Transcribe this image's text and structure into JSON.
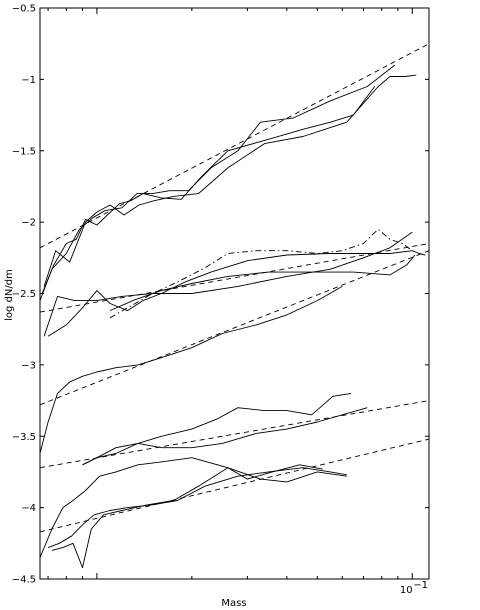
{
  "chart_data": {
    "type": "line",
    "title": "",
    "xlabel": "Mass",
    "ylabel": "log dN/dm",
    "xscale": "log",
    "xlim": [
      0.0066,
      0.113
    ],
    "ylim": [
      -4.5,
      -0.5
    ],
    "grid": false,
    "legend": "none",
    "x_tick_labels": [
      {
        "value": 0.1,
        "label": "10",
        "exponent": "−1"
      }
    ],
    "y_ticks": [
      -4.5,
      -4,
      -3.5,
      -3,
      -2.5,
      -2,
      -1.5,
      -1,
      -0.5
    ],
    "y_tick_labels": [
      "−4.5",
      "−4",
      "−3.5",
      "−3",
      "−2.5",
      "−2",
      "−1.5",
      "−1",
      "−0.5"
    ],
    "series": [
      {
        "style": "solid",
        "x": [
          0.0066,
          0.0072,
          0.008,
          0.0088,
          0.0097,
          0.0106,
          0.012,
          0.0134,
          0.015,
          0.017,
          0.0195,
          0.023,
          0.028,
          0.033,
          0.042,
          0.055,
          0.072,
          0.088
        ],
        "y": [
          -2.55,
          -2.33,
          -2.22,
          -2.05,
          -1.97,
          -1.92,
          -1.9,
          -1.8,
          -1.8,
          -1.78,
          -1.78,
          -1.62,
          -1.5,
          -1.3,
          -1.27,
          -1.15,
          -1.05,
          -0.9
        ]
      },
      {
        "style": "solid",
        "x": [
          0.0068,
          0.0074,
          0.0082,
          0.0092,
          0.01,
          0.011,
          0.0122,
          0.0136,
          0.0152,
          0.0175,
          0.021,
          0.026,
          0.034,
          0.045,
          0.062,
          0.078,
          0.085,
          0.095,
          0.103
        ],
        "y": [
          -2.45,
          -2.2,
          -2.28,
          -2.0,
          -1.93,
          -1.88,
          -1.95,
          -1.88,
          -1.85,
          -1.82,
          -1.8,
          -1.62,
          -1.45,
          -1.4,
          -1.3,
          -1.05,
          -0.98,
          -0.98,
          -0.97
        ]
      },
      {
        "style": "solid",
        "x": [
          0.0067,
          0.0073,
          0.008,
          0.0086,
          0.0092,
          0.01,
          0.0108,
          0.0118,
          0.0128,
          0.014,
          0.016,
          0.0185,
          0.0215,
          0.026,
          0.035,
          0.045,
          0.055,
          0.065,
          0.076
        ],
        "y": [
          -2.5,
          -2.3,
          -2.15,
          -2.12,
          -1.98,
          -2.02,
          -1.95,
          -1.87,
          -1.85,
          -1.8,
          -1.83,
          -1.84,
          -1.68,
          -1.5,
          -1.42,
          -1.35,
          -1.3,
          -1.25,
          -1.05
        ]
      },
      {
        "style": "dashed",
        "x": [
          0.0066,
          0.113
        ],
        "y": [
          -2.18,
          -0.75
        ]
      },
      {
        "style": "solid",
        "x": [
          0.0068,
          0.0075,
          0.0085,
          0.01,
          0.012,
          0.015,
          0.02,
          0.028,
          0.04,
          0.055,
          0.07,
          0.085,
          0.1
        ],
        "y": [
          -2.8,
          -2.52,
          -2.55,
          -2.55,
          -2.52,
          -2.5,
          -2.5,
          -2.45,
          -2.38,
          -2.33,
          -2.25,
          -2.18,
          -2.07
        ]
      },
      {
        "style": "solid",
        "x": [
          0.007,
          0.008,
          0.009,
          0.01,
          0.011,
          0.0125,
          0.014,
          0.016,
          0.019,
          0.023,
          0.03,
          0.04,
          0.055,
          0.07,
          0.085,
          0.1,
          0.105,
          0.11
        ],
        "y": [
          -2.8,
          -2.72,
          -2.6,
          -2.48,
          -2.57,
          -2.62,
          -2.55,
          -2.5,
          -2.42,
          -2.35,
          -2.27,
          -2.23,
          -2.22,
          -2.22,
          -2.22,
          -2.2,
          -2.22,
          -2.23
        ]
      },
      {
        "style": "solid",
        "x": [
          0.011,
          0.013,
          0.016,
          0.02,
          0.026,
          0.035,
          0.048,
          0.065,
          0.085,
          0.096,
          0.102
        ],
        "y": [
          -2.62,
          -2.55,
          -2.48,
          -2.43,
          -2.38,
          -2.35,
          -2.35,
          -2.35,
          -2.37,
          -2.3,
          -2.23
        ]
      },
      {
        "style": "dashdot",
        "x": [
          0.011,
          0.013,
          0.015,
          0.018,
          0.022,
          0.026,
          0.032,
          0.04,
          0.05,
          0.06,
          0.07,
          0.078,
          0.085,
          0.093,
          0.1
        ],
        "y": [
          -2.67,
          -2.58,
          -2.5,
          -2.42,
          -2.32,
          -2.22,
          -2.2,
          -2.2,
          -2.22,
          -2.2,
          -2.15,
          -2.05,
          -2.12,
          -2.15,
          -2.2
        ]
      },
      {
        "style": "dashed",
        "x": [
          0.0066,
          0.113
        ],
        "y": [
          -2.63,
          -2.15
        ]
      },
      {
        "style": "solid",
        "x": [
          0.0066,
          0.007,
          0.0075,
          0.0082,
          0.009,
          0.01,
          0.0115,
          0.0135,
          0.016,
          0.02,
          0.025,
          0.032,
          0.04,
          0.05,
          0.06
        ],
        "y": [
          -3.62,
          -3.4,
          -3.2,
          -3.12,
          -3.08,
          -3.05,
          -3.02,
          -3.0,
          -2.95,
          -2.88,
          -2.78,
          -2.72,
          -2.65,
          -2.55,
          -2.45
        ]
      },
      {
        "style": "dashed",
        "x": [
          0.0066,
          0.113
        ],
        "y": [
          -3.28,
          -2.2
        ]
      },
      {
        "style": "solid",
        "x": [
          0.009,
          0.01,
          0.0115,
          0.0135,
          0.016,
          0.02,
          0.025,
          0.032,
          0.04,
          0.05,
          0.06,
          0.072
        ],
        "y": [
          -3.7,
          -3.65,
          -3.58,
          -3.55,
          -3.58,
          -3.58,
          -3.55,
          -3.48,
          -3.45,
          -3.4,
          -3.35,
          -3.3
        ]
      },
      {
        "style": "solid",
        "x": [
          0.009,
          0.01,
          0.0115,
          0.0135,
          0.016,
          0.02,
          0.024,
          0.028,
          0.034,
          0.04,
          0.048,
          0.056,
          0.064
        ],
        "y": [
          -3.7,
          -3.65,
          -3.62,
          -3.55,
          -3.5,
          -3.45,
          -3.38,
          -3.3,
          -3.32,
          -3.32,
          -3.35,
          -3.22,
          -3.2
        ]
      },
      {
        "style": "dashed",
        "x": [
          0.0066,
          0.113
        ],
        "y": [
          -3.72,
          -3.25
        ]
      },
      {
        "style": "solid",
        "x": [
          0.0066,
          0.0072,
          0.0078,
          0.0084,
          0.0092,
          0.0102,
          0.0115,
          0.0135,
          0.016,
          0.02,
          0.026,
          0.033,
          0.04,
          0.05,
          0.062
        ],
        "y": [
          -4.35,
          -4.15,
          -4.0,
          -3.95,
          -3.88,
          -3.78,
          -3.75,
          -3.7,
          -3.68,
          -3.65,
          -3.72,
          -3.8,
          -3.82,
          -3.75,
          -3.78
        ]
      },
      {
        "style": "solid",
        "x": [
          0.007,
          0.0076,
          0.0083,
          0.009,
          0.0098,
          0.011,
          0.0125,
          0.015,
          0.018,
          0.022,
          0.028,
          0.035,
          0.045,
          0.055,
          0.062
        ],
        "y": [
          -4.28,
          -4.25,
          -4.2,
          -4.12,
          -4.05,
          -4.02,
          -4.0,
          -3.98,
          -3.95,
          -3.85,
          -3.78,
          -3.75,
          -3.72,
          -3.75,
          -3.77
        ]
      },
      {
        "style": "solid",
        "x": [
          0.0072,
          0.0078,
          0.0084,
          0.009,
          0.0096,
          0.0105,
          0.012,
          0.0145,
          0.0175,
          0.021,
          0.026,
          0.03,
          0.036,
          0.044,
          0.052
        ],
        "y": [
          -4.3,
          -4.28,
          -4.25,
          -4.42,
          -4.15,
          -4.05,
          -4.02,
          -3.98,
          -3.95,
          -3.85,
          -3.72,
          -3.8,
          -3.75,
          -3.7,
          -3.73
        ]
      },
      {
        "style": "dashed",
        "x": [
          0.0066,
          0.113
        ],
        "y": [
          -4.17,
          -3.52
        ]
      }
    ]
  }
}
